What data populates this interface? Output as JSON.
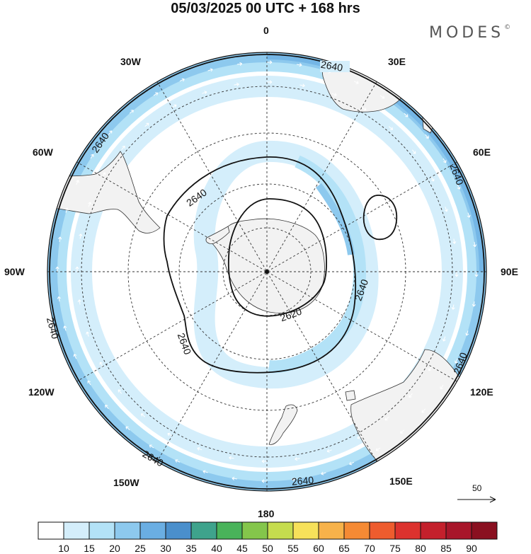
{
  "header": {
    "title": "05/03/2025  00 UTC  + 168 hrs",
    "brand": "MODES",
    "brand_mark": "©"
  },
  "map": {
    "projection": "south-polar-stereographic",
    "meridian_labels": {
      "m0": "0",
      "m30e": "30E",
      "m60e": "60E",
      "m90e": "90E",
      "m120e": "120E",
      "m150e": "150E",
      "m180": "180",
      "m150w": "150W",
      "m120w": "120W",
      "m90w": "90W",
      "m60w": "60W",
      "m30w": "30W"
    },
    "contour_labels": [
      "2640",
      "2640",
      "2640",
      "2640",
      "2640",
      "2640",
      "2640",
      "2640",
      "2640",
      "2620"
    ],
    "fill_colors": {
      "ocean_bg": "#ffffff",
      "land": "#f2f2f2",
      "band_15": "#d4eefb",
      "band_20": "#b3e2f7",
      "band_25": "#8dc9ee",
      "band_30": "#6aaee3"
    },
    "wind_reference": {
      "value": "50"
    }
  },
  "colorbar": {
    "labels": [
      "10",
      "15",
      "20",
      "25",
      "30",
      "35",
      "40",
      "45",
      "50",
      "55",
      "60",
      "65",
      "70",
      "75",
      "80",
      "85",
      "90"
    ],
    "colors": [
      "#ffffff",
      "#d4eefb",
      "#b3e2f7",
      "#8dc9ee",
      "#6aaee3",
      "#4a8fcc",
      "#3ea38c",
      "#49b35a",
      "#84c64b",
      "#c5dc4e",
      "#f7e15a",
      "#f7b24a",
      "#f58a34",
      "#ee5c2e",
      "#dc322e",
      "#c4202c",
      "#a8162a",
      "#8a1020"
    ]
  }
}
